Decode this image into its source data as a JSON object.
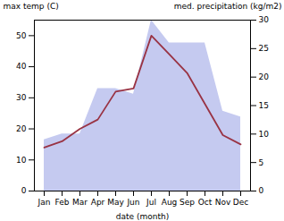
{
  "chart_data": {
    "type": "line",
    "xlabel": "date (month)",
    "ylabel": "max temp (C)",
    "y2label": "med. precipitation (kg/m2)",
    "categories": [
      "Jan",
      "Feb",
      "Mar",
      "Apr",
      "May",
      "Jun",
      "Jul",
      "Aug",
      "Sep",
      "Oct",
      "Nov",
      "Dec"
    ],
    "series": [
      {
        "type": "area",
        "axis": "y2",
        "color": "#c5caf0",
        "values": [
          9,
          10,
          10,
          18,
          18,
          17,
          30,
          26,
          26,
          26,
          14,
          13
        ]
      },
      {
        "type": "line",
        "color": "#993344",
        "values": [
          14,
          16,
          20,
          23,
          32,
          33,
          50,
          44,
          38,
          28,
          18,
          15
        ]
      }
    ],
    "ylim": [
      0,
      55
    ],
    "yticks": [
      0,
      10,
      20,
      30,
      40,
      50
    ],
    "y2lim": [
      0,
      30
    ],
    "y2ticks": [
      0,
      5,
      10,
      15,
      20,
      25,
      30
    ]
  }
}
